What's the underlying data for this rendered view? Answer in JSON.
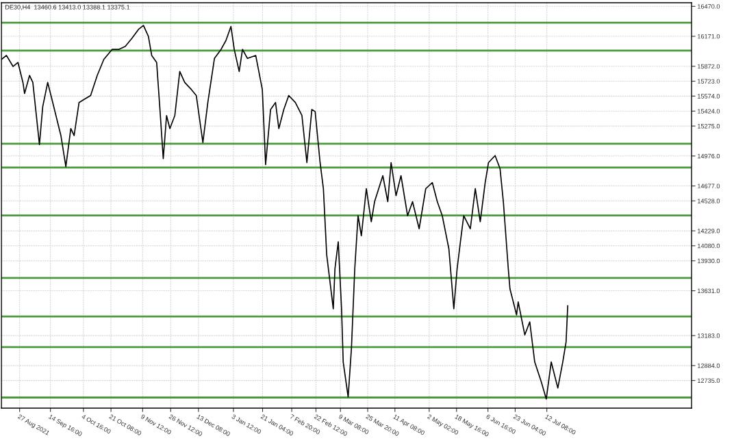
{
  "chart_data": {
    "type": "line",
    "title": "DE30,H4  13460.6 13413.0 13388.1 13375.1",
    "x": [
      "2021-08-16",
      "2021-08-19",
      "2021-08-23",
      "2021-08-26",
      "2021-08-29",
      "2021-08-30",
      "2021-09-02",
      "2021-09-04",
      "2021-09-08",
      "2021-09-10",
      "2021-09-13",
      "2021-09-15",
      "2021-09-18",
      "2021-09-21",
      "2021-09-24",
      "2021-09-27",
      "2021-09-29",
      "2021-10-02",
      "2021-10-05",
      "2021-10-09",
      "2021-10-13",
      "2021-10-17",
      "2021-10-22",
      "2021-10-26",
      "2021-10-30",
      "2021-11-03",
      "2021-11-07",
      "2021-11-10",
      "2021-11-13",
      "2021-11-15",
      "2021-11-18",
      "2021-11-20",
      "2021-11-22",
      "2021-11-24",
      "2021-11-26",
      "2021-11-29",
      "2021-12-02",
      "2021-12-05",
      "2021-12-09",
      "2021-12-12",
      "2021-12-16",
      "2021-12-19",
      "2021-12-23",
      "2021-12-27",
      "2021-12-30",
      "2022-01-02",
      "2022-01-04",
      "2022-01-07",
      "2022-01-09",
      "2022-01-12",
      "2022-01-17",
      "2022-01-21",
      "2022-01-23",
      "2022-01-26",
      "2022-01-29",
      "2022-01-31",
      "2022-02-03",
      "2022-02-06",
      "2022-02-10",
      "2022-02-14",
      "2022-02-17",
      "2022-02-20",
      "2022-02-22",
      "2022-02-25",
      "2022-02-27",
      "2022-03-01",
      "2022-03-03",
      "2022-03-05",
      "2022-03-06",
      "2022-03-08",
      "2022-03-10",
      "2022-03-11",
      "2022-03-14",
      "2022-03-16",
      "2022-03-18",
      "2022-03-20",
      "2022-03-22",
      "2022-03-25",
      "2022-03-28",
      "2022-03-30",
      "2022-04-04",
      "2022-04-07",
      "2022-04-09",
      "2022-04-12",
      "2022-04-15",
      "2022-04-19",
      "2022-04-22",
      "2022-04-26",
      "2022-04-30",
      "2022-05-04",
      "2022-05-07",
      "2022-05-10",
      "2022-05-14",
      "2022-05-17",
      "2022-05-19",
      "2022-05-21",
      "2022-05-23",
      "2022-05-27",
      "2022-05-30",
      "2022-06-02",
      "2022-06-05",
      "2022-06-07",
      "2022-06-11",
      "2022-06-14",
      "2022-06-16",
      "2022-06-19",
      "2022-06-20",
      "2022-06-24",
      "2022-06-25",
      "2022-06-29",
      "2022-07-02",
      "2022-07-05",
      "2022-07-09",
      "2022-07-12",
      "2022-07-15",
      "2022-07-19",
      "2022-07-22",
      "2022-07-24",
      "2022-07-25"
    ],
    "series": [
      {
        "color": "#000000",
        "values": [
          15940,
          15980,
          15870,
          15910,
          15710,
          15600,
          15780,
          15710,
          15090,
          15470,
          15710,
          15580,
          15380,
          15180,
          14870,
          15250,
          15180,
          15510,
          15540,
          15580,
          15780,
          15940,
          16040,
          16040,
          16070,
          16150,
          16240,
          16280,
          16170,
          15980,
          15910,
          15440,
          14950,
          15380,
          15250,
          15380,
          15820,
          15710,
          15640,
          15580,
          15110,
          15510,
          15950,
          16040,
          16130,
          16270,
          16040,
          15820,
          16040,
          15950,
          15980,
          15640,
          14890,
          15440,
          15510,
          15250,
          15440,
          15580,
          15510,
          15380,
          14910,
          15440,
          15420,
          14910,
          14650,
          13990,
          13720,
          13450,
          13850,
          14120,
          13450,
          12920,
          12570,
          13060,
          13850,
          14380,
          14180,
          14650,
          14320,
          14520,
          14780,
          14520,
          14910,
          14580,
          14780,
          14380,
          14520,
          14250,
          14650,
          14710,
          14520,
          14380,
          14050,
          13450,
          13850,
          14120,
          14380,
          14250,
          14650,
          14320,
          14710,
          14910,
          14980,
          14850,
          14520,
          13850,
          13650,
          13390,
          13520,
          13190,
          13320,
          12920,
          12720,
          12550,
          12920,
          12660,
          12920,
          13120,
          13480
        ]
      }
    ],
    "xlim": [
      "2021-08-16",
      "2022-10-08"
    ],
    "xticks": [
      {
        "value": "2021-08-27",
        "label": "27 Aug 2021"
      },
      {
        "value": "2021-09-14T16:00",
        "label": "14 Sep 16:00"
      },
      {
        "value": "2021-10-04T16:00",
        "label": "4 Oct 16:00"
      },
      {
        "value": "2021-10-21T08:00",
        "label": "21 Oct 08:00"
      },
      {
        "value": "2021-11-09T12:00",
        "label": "9 Nov 12:00"
      },
      {
        "value": "2021-11-26T12:00",
        "label": "26 Nov 12:00"
      },
      {
        "value": "2021-12-13T08:00",
        "label": "13 Dec 08:00"
      },
      {
        "value": "2022-01-03T12:00",
        "label": "3 Jan 12:00"
      },
      {
        "value": "2022-01-21T04:00",
        "label": "21 Jan 04:00"
      },
      {
        "value": "2022-02-07T20:00",
        "label": "7 Feb 20:00"
      },
      {
        "value": "2022-02-22T12:00",
        "label": "22 Feb 12:00"
      },
      {
        "value": "2022-03-09T08:00",
        "label": "9 Mar 08:00"
      },
      {
        "value": "2022-03-25T20:00",
        "label": "25 Mar 20:00"
      },
      {
        "value": "2022-04-11T08:00",
        "label": "11 Apr 08:00"
      },
      {
        "value": "2022-05-02T02:00",
        "label": "2 May 02:00"
      },
      {
        "value": "2022-05-18T16:00",
        "label": "18 May 16:00"
      },
      {
        "value": "2022-06-06T16:00",
        "label": "6 Jun 16:00"
      },
      {
        "value": "2022-06-23T04:00",
        "label": "23 Jun 04:00"
      },
      {
        "value": "2022-07-12T08:00",
        "label": "12 Jul 08:00"
      }
    ],
    "ylim": [
      12459,
      16506
    ],
    "yticks": [
      {
        "value": 16470,
        "label": "16470.0"
      },
      {
        "value": 16171,
        "label": "16171.0"
      },
      {
        "value": 15872,
        "label": "15872.0"
      },
      {
        "value": 15723,
        "label": "15723.0"
      },
      {
        "value": 15574,
        "label": "15574.0"
      },
      {
        "value": 15424,
        "label": "15424.0"
      },
      {
        "value": 15275,
        "label": "15275.0"
      },
      {
        "value": 14976,
        "label": "14976.0"
      },
      {
        "value": 14677,
        "label": "14677.0"
      },
      {
        "value": 14528,
        "label": "14528.0"
      },
      {
        "value": 14229,
        "label": "14229.0"
      },
      {
        "value": 14080,
        "label": "14080.0"
      },
      {
        "value": 13930,
        "label": "13930.0"
      },
      {
        "value": 13631,
        "label": "13631.0"
      },
      {
        "value": 13183,
        "label": "13183.0"
      },
      {
        "value": 12884,
        "label": "12884.0"
      },
      {
        "value": 12735,
        "label": "12735.0"
      }
    ],
    "ref_lines": [
      {
        "axis": "y",
        "value": 16307,
        "color": "#4a9a3c"
      },
      {
        "axis": "y",
        "value": 16028,
        "color": "#4a9a3c"
      },
      {
        "axis": "y",
        "value": 15099,
        "color": "#4a9a3c"
      },
      {
        "axis": "y",
        "value": 14861,
        "color": "#4a9a3c"
      },
      {
        "axis": "y",
        "value": 14383,
        "color": "#4a9a3c"
      },
      {
        "axis": "y",
        "value": 13759,
        "color": "#4a9a3c"
      },
      {
        "axis": "y",
        "value": 13374,
        "color": "#4a9a3c"
      },
      {
        "axis": "y",
        "value": 13069,
        "color": "#4a9a3c"
      },
      {
        "axis": "y",
        "value": 12565,
        "color": "#4a9a3c"
      }
    ],
    "grid": true,
    "line_style": "solid"
  }
}
